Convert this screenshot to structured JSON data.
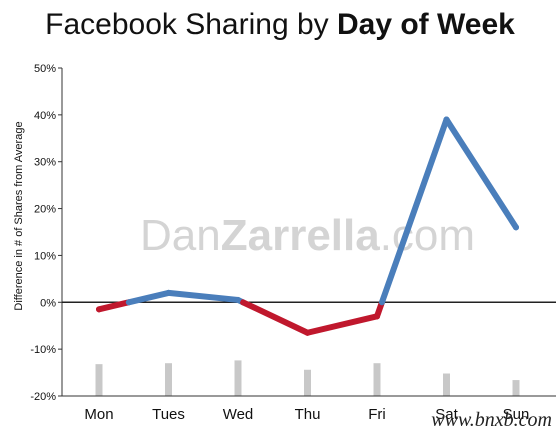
{
  "title_light": "Facebook Sharing by ",
  "title_bold": "Day of Week",
  "watermark_center": {
    "light": "Dan",
    "bold": "Zarrella",
    "suffix": ".com"
  },
  "watermark_corner": "www.bnxb.com",
  "chart_data": {
    "type": "line",
    "title": "Facebook Sharing by Day of Week",
    "xlabel": "",
    "ylabel": "Difference in # of Shares from Average",
    "categories": [
      "Mon",
      "Tues",
      "Wed",
      "Thu",
      "Fri",
      "Sat",
      "Sun"
    ],
    "ylim": [
      -20,
      50
    ],
    "yticks": [
      "50%",
      "40%",
      "30%",
      "20%",
      "10%",
      "0%",
      "-10%",
      "-20%"
    ],
    "ytick_values": [
      50,
      40,
      30,
      20,
      10,
      0,
      -10,
      -20
    ],
    "series": [
      {
        "values": [
          -1.5,
          2,
          0.5,
          -6.5,
          -3,
          39,
          16
        ]
      }
    ],
    "bar_values": [
      6.8,
      7.0,
      7.6,
      5.6,
      7.0,
      4.8,
      3.4
    ],
    "grid": false,
    "colors": {
      "positive": "#4a7ebb",
      "negative": "#c0182d",
      "bars": "#c8c8c8",
      "zero_line": "#222222"
    }
  }
}
